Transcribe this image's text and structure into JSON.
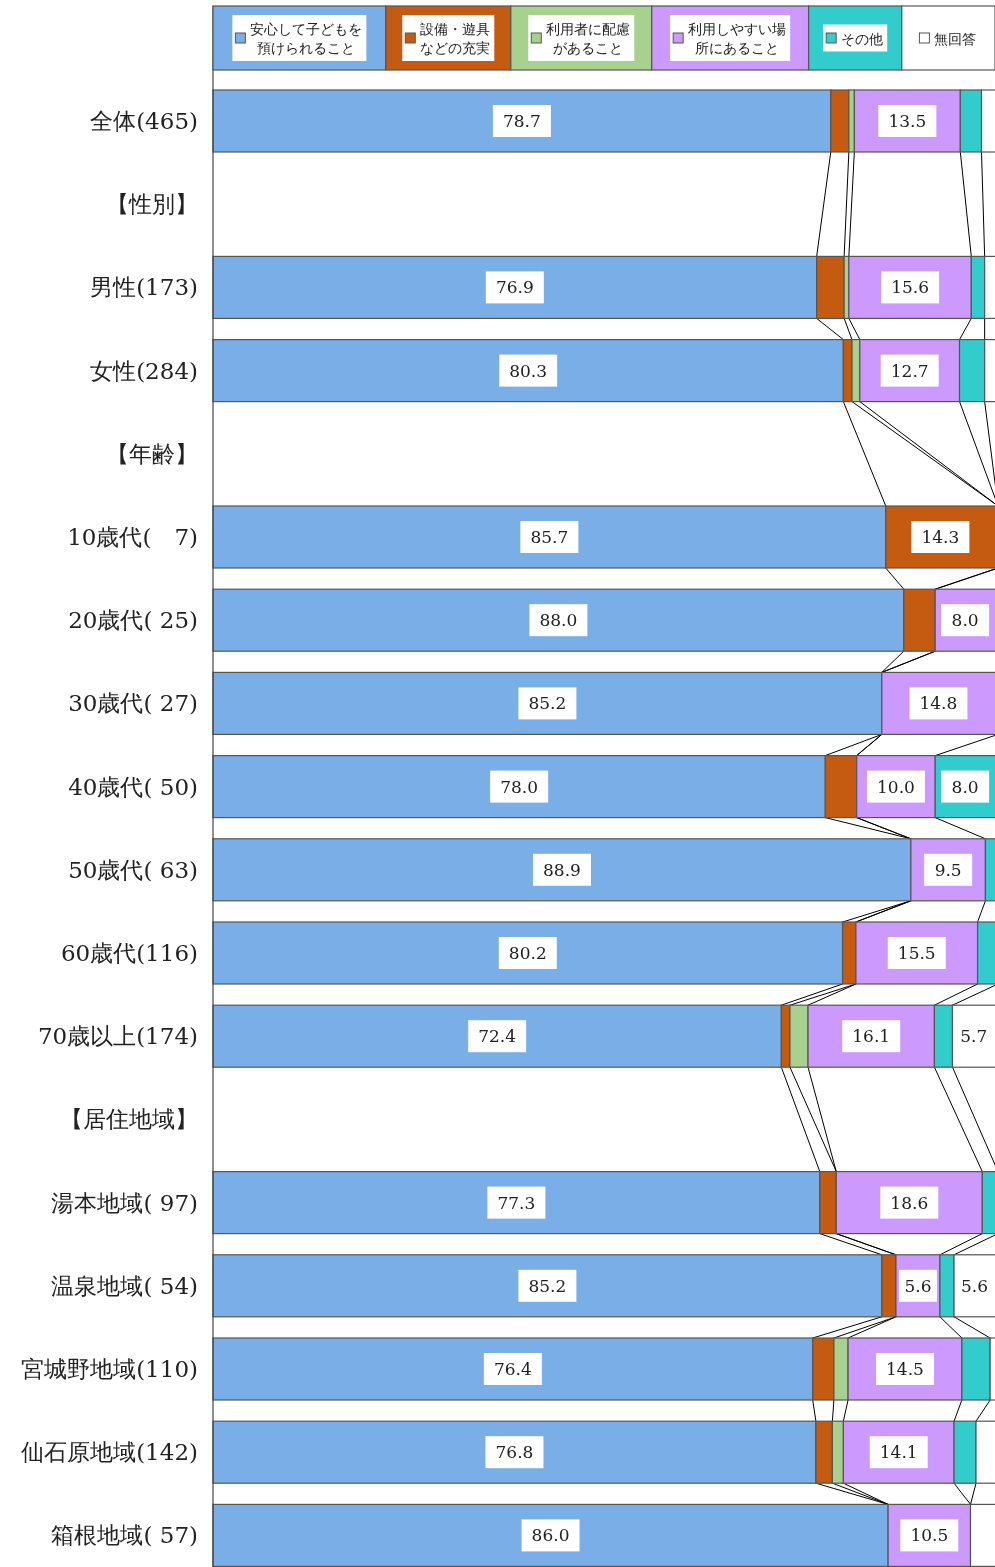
{
  "chart_data": {
    "type": "bar",
    "orientation": "horizontal",
    "stacked": true,
    "legend": "top",
    "tick_labels": "y",
    "xlim": [
      0,
      100
    ],
    "categories": [
      "全体(465)",
      "【性別】",
      "男性(173)",
      "女性(284)",
      "【年齢】",
      "10歳代(　7)",
      "20歳代( 25)",
      "30歳代( 27)",
      "40歳代( 50)",
      "50歳代( 63)",
      "60歳代(116)",
      "70歳以上(174)",
      "【居住地域】",
      "湯本地域( 97)",
      "温泉地域( 54)",
      "宮城野地域(110)",
      "仙石原地域(142)",
      "箱根地域( 57)"
    ],
    "series": [
      {
        "name": "安心して子どもを預けられること",
        "color": "#7aaee6",
        "values": [
          78.7,
          null,
          76.9,
          80.3,
          null,
          85.7,
          88.0,
          85.2,
          78.0,
          88.9,
          80.2,
          72.4,
          null,
          77.3,
          85.2,
          76.4,
          76.8,
          86.0
        ],
        "value_labels": [
          "78.7",
          null,
          "76.9",
          "80.3",
          null,
          "85.7",
          "88.0",
          "85.2",
          "78.0",
          "88.9",
          "80.2",
          "72.4",
          null,
          "77.3",
          "85.2",
          "76.4",
          "76.8",
          "86.0"
        ]
      },
      {
        "name": "設備・遊具などの充実",
        "color": "#c55a11",
        "values": [
          2.3,
          null,
          3.5,
          1.1,
          null,
          14.3,
          4.0,
          0,
          4.0,
          0,
          1.7,
          1.1,
          null,
          2.1,
          1.8,
          2.7,
          2.1,
          0
        ],
        "value_labels": [
          null,
          null,
          null,
          null,
          null,
          "14.3",
          null,
          null,
          null,
          null,
          null,
          null,
          null,
          null,
          null,
          null,
          null,
          null
        ]
      },
      {
        "name": "利用者に配慮があること",
        "color": "#a9d18e",
        "values": [
          0.7,
          null,
          0.6,
          1.0,
          null,
          0,
          0,
          0,
          0,
          0,
          0,
          2.3,
          null,
          0,
          0,
          1.8,
          1.4,
          0
        ],
        "value_labels": [
          null,
          null,
          null,
          null,
          null,
          null,
          null,
          null,
          null,
          null,
          null,
          null,
          null,
          null,
          null,
          null,
          null,
          null
        ]
      },
      {
        "name": "利用しやすい場所にあること",
        "color": "#cc99ff",
        "values": [
          13.5,
          null,
          15.6,
          12.7,
          null,
          0,
          8.0,
          14.8,
          10.0,
          9.5,
          15.5,
          16.1,
          null,
          18.6,
          5.6,
          14.5,
          14.1,
          10.5
        ],
        "value_labels": [
          "13.5",
          null,
          "15.6",
          "12.7",
          null,
          null,
          "8.0",
          "14.8",
          "10.0",
          "9.5",
          "15.5",
          "16.1",
          null,
          "18.6",
          "5.6",
          "14.5",
          "14.1",
          "10.5"
        ]
      },
      {
        "name": "その他",
        "color": "#33cccc",
        "values": [
          2.7,
          null,
          1.7,
          3.2,
          null,
          0,
          0,
          0,
          8.0,
          1.6,
          2.6,
          2.3,
          null,
          2.0,
          1.8,
          3.6,
          2.8,
          0
        ],
        "value_labels": [
          null,
          null,
          null,
          null,
          null,
          null,
          null,
          null,
          "8.0",
          null,
          null,
          null,
          null,
          null,
          null,
          null,
          null,
          null
        ]
      },
      {
        "name": "無回答",
        "color": "#ffffff",
        "values": [
          2.1,
          null,
          1.7,
          1.7,
          null,
          0,
          0,
          0,
          0,
          0,
          0,
          5.7,
          null,
          0,
          5.6,
          1.0,
          2.8,
          3.5
        ],
        "value_labels": [
          null,
          null,
          null,
          null,
          null,
          null,
          null,
          null,
          null,
          null,
          null,
          "5.7",
          null,
          null,
          "5.6",
          null,
          null,
          null
        ]
      }
    ]
  }
}
